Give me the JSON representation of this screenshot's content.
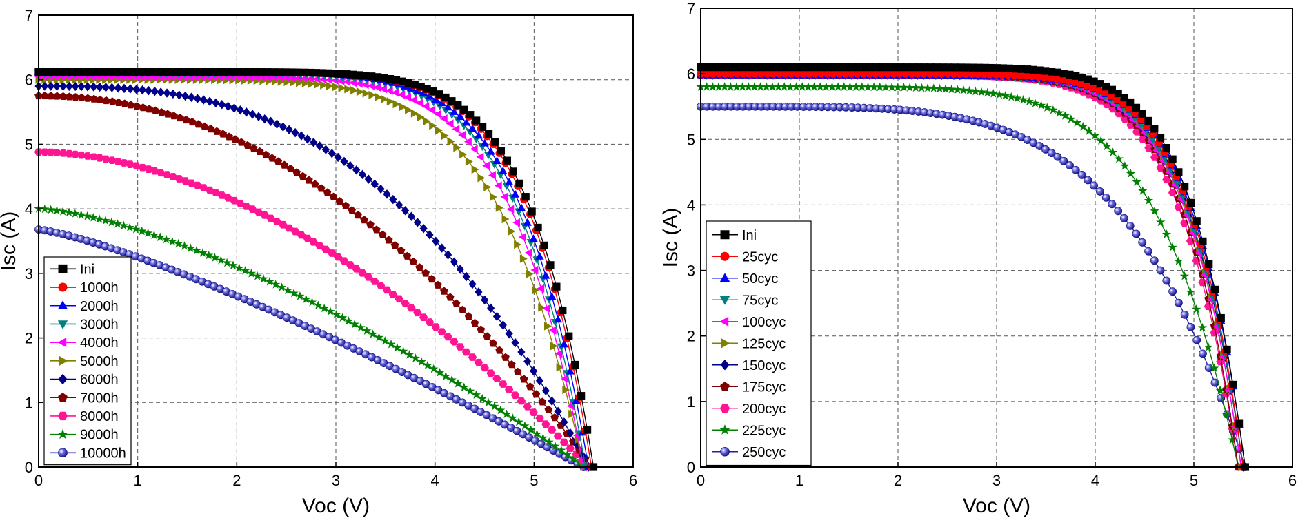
{
  "chart_data": [
    {
      "type": "line",
      "xlabel": "Voc (V)",
      "ylabel": "Isc (A)",
      "xlim": [
        0,
        6
      ],
      "ylim": [
        0,
        7
      ],
      "xticks": [
        "0",
        "1",
        "2",
        "3",
        "4",
        "5",
        "6"
      ],
      "yticks": [
        "0",
        "1",
        "2",
        "3",
        "4",
        "5",
        "6",
        "7"
      ],
      "grid": "dashed",
      "legend_position": "bottom-left",
      "series": [
        {
          "name": "Ini",
          "color": "#000000",
          "marker": "square",
          "isc": 6.12,
          "voc": 5.6,
          "knee": 4.5,
          "shape": 5.0
        },
        {
          "name": "1000h",
          "color": "#ff0000",
          "marker": "circle",
          "isc": 6.12,
          "voc": 5.58,
          "knee": 4.4,
          "shape": 5.0
        },
        {
          "name": "2000h",
          "color": "#0000ff",
          "marker": "triangle-up",
          "isc": 6.12,
          "voc": 5.55,
          "knee": 4.3,
          "shape": 4.8
        },
        {
          "name": "3000h",
          "color": "#008080",
          "marker": "triangle-down",
          "isc": 6.1,
          "voc": 5.52,
          "knee": 4.2,
          "shape": 4.8
        },
        {
          "name": "4000h",
          "color": "#ff00ff",
          "marker": "triangle-left",
          "isc": 6.05,
          "voc": 5.5,
          "knee": 4.1,
          "shape": 4.6
        },
        {
          "name": "5000h",
          "color": "#808000",
          "marker": "triangle-right",
          "isc": 6.0,
          "voc": 5.5,
          "knee": 3.9,
          "shape": 4.2
        },
        {
          "name": "6000h",
          "color": "#00008b",
          "marker": "diamond",
          "isc": 5.9,
          "voc": 5.55,
          "knee": 2.9,
          "shape": 2.4
        },
        {
          "name": "7000h",
          "color": "#800000",
          "marker": "pentagon",
          "isc": 5.75,
          "voc": 5.58,
          "knee": 2.5,
          "shape": 2.1
        },
        {
          "name": "8000h",
          "color": "#ff1493",
          "marker": "hexagon",
          "isc": 4.88,
          "voc": 5.55,
          "knee": 2.4,
          "shape": 1.9
        },
        {
          "name": "9000h",
          "color": "#008000",
          "marker": "star",
          "isc": 4.0,
          "voc": 5.52,
          "knee": 2.3,
          "shape": 1.6
        },
        {
          "name": "10000h",
          "color": "#2020b0",
          "marker": "sphere",
          "isc": 3.68,
          "voc": 5.5,
          "knee": 2.1,
          "shape": 1.5
        }
      ]
    },
    {
      "type": "line",
      "xlabel": "Voc (V)",
      "ylabel": "Isc (A)",
      "xlim": [
        0,
        6
      ],
      "ylim": [
        0,
        7
      ],
      "xticks": [
        "0",
        "1",
        "2",
        "3",
        "4",
        "5",
        "6"
      ],
      "yticks": [
        "0",
        "1",
        "2",
        "3",
        "4",
        "5",
        "6",
        "7"
      ],
      "grid": "dashed",
      "legend_position": "left",
      "series": [
        {
          "name": "Ini",
          "color": "#000000",
          "marker": "square",
          "isc": 6.1,
          "voc": 5.52,
          "knee": 4.6,
          "shape": 5.6
        },
        {
          "name": "25cyc",
          "color": "#ff0000",
          "marker": "circle",
          "isc": 6.0,
          "voc": 5.5,
          "knee": 4.6,
          "shape": 5.6
        },
        {
          "name": "50cyc",
          "color": "#0000ff",
          "marker": "triangle-up",
          "isc": 5.98,
          "voc": 5.52,
          "knee": 4.6,
          "shape": 5.6
        },
        {
          "name": "75cyc",
          "color": "#008080",
          "marker": "triangle-down",
          "isc": 5.98,
          "voc": 5.5,
          "knee": 4.6,
          "shape": 5.4
        },
        {
          "name": "100cyc",
          "color": "#ff00ff",
          "marker": "triangle-left",
          "isc": 5.98,
          "voc": 5.48,
          "knee": 4.5,
          "shape": 5.4
        },
        {
          "name": "125cyc",
          "color": "#808000",
          "marker": "triangle-right",
          "isc": 6.05,
          "voc": 5.48,
          "knee": 4.5,
          "shape": 5.4
        },
        {
          "name": "150cyc",
          "color": "#00008b",
          "marker": "diamond",
          "isc": 5.98,
          "voc": 5.5,
          "knee": 4.5,
          "shape": 5.4
        },
        {
          "name": "175cyc",
          "color": "#800000",
          "marker": "pentagon",
          "isc": 5.98,
          "voc": 5.45,
          "knee": 4.5,
          "shape": 5.4
        },
        {
          "name": "200cyc",
          "color": "#ff1493",
          "marker": "hexagon",
          "isc": 5.98,
          "voc": 5.45,
          "knee": 4.4,
          "shape": 5.2
        },
        {
          "name": "225cyc",
          "color": "#008000",
          "marker": "star",
          "isc": 5.8,
          "voc": 5.45,
          "knee": 4.1,
          "shape": 4.0
        },
        {
          "name": "250cyc",
          "color": "#2020b0",
          "marker": "sphere",
          "isc": 5.5,
          "voc": 5.52,
          "knee": 3.9,
          "shape": 3.0
        }
      ]
    }
  ]
}
